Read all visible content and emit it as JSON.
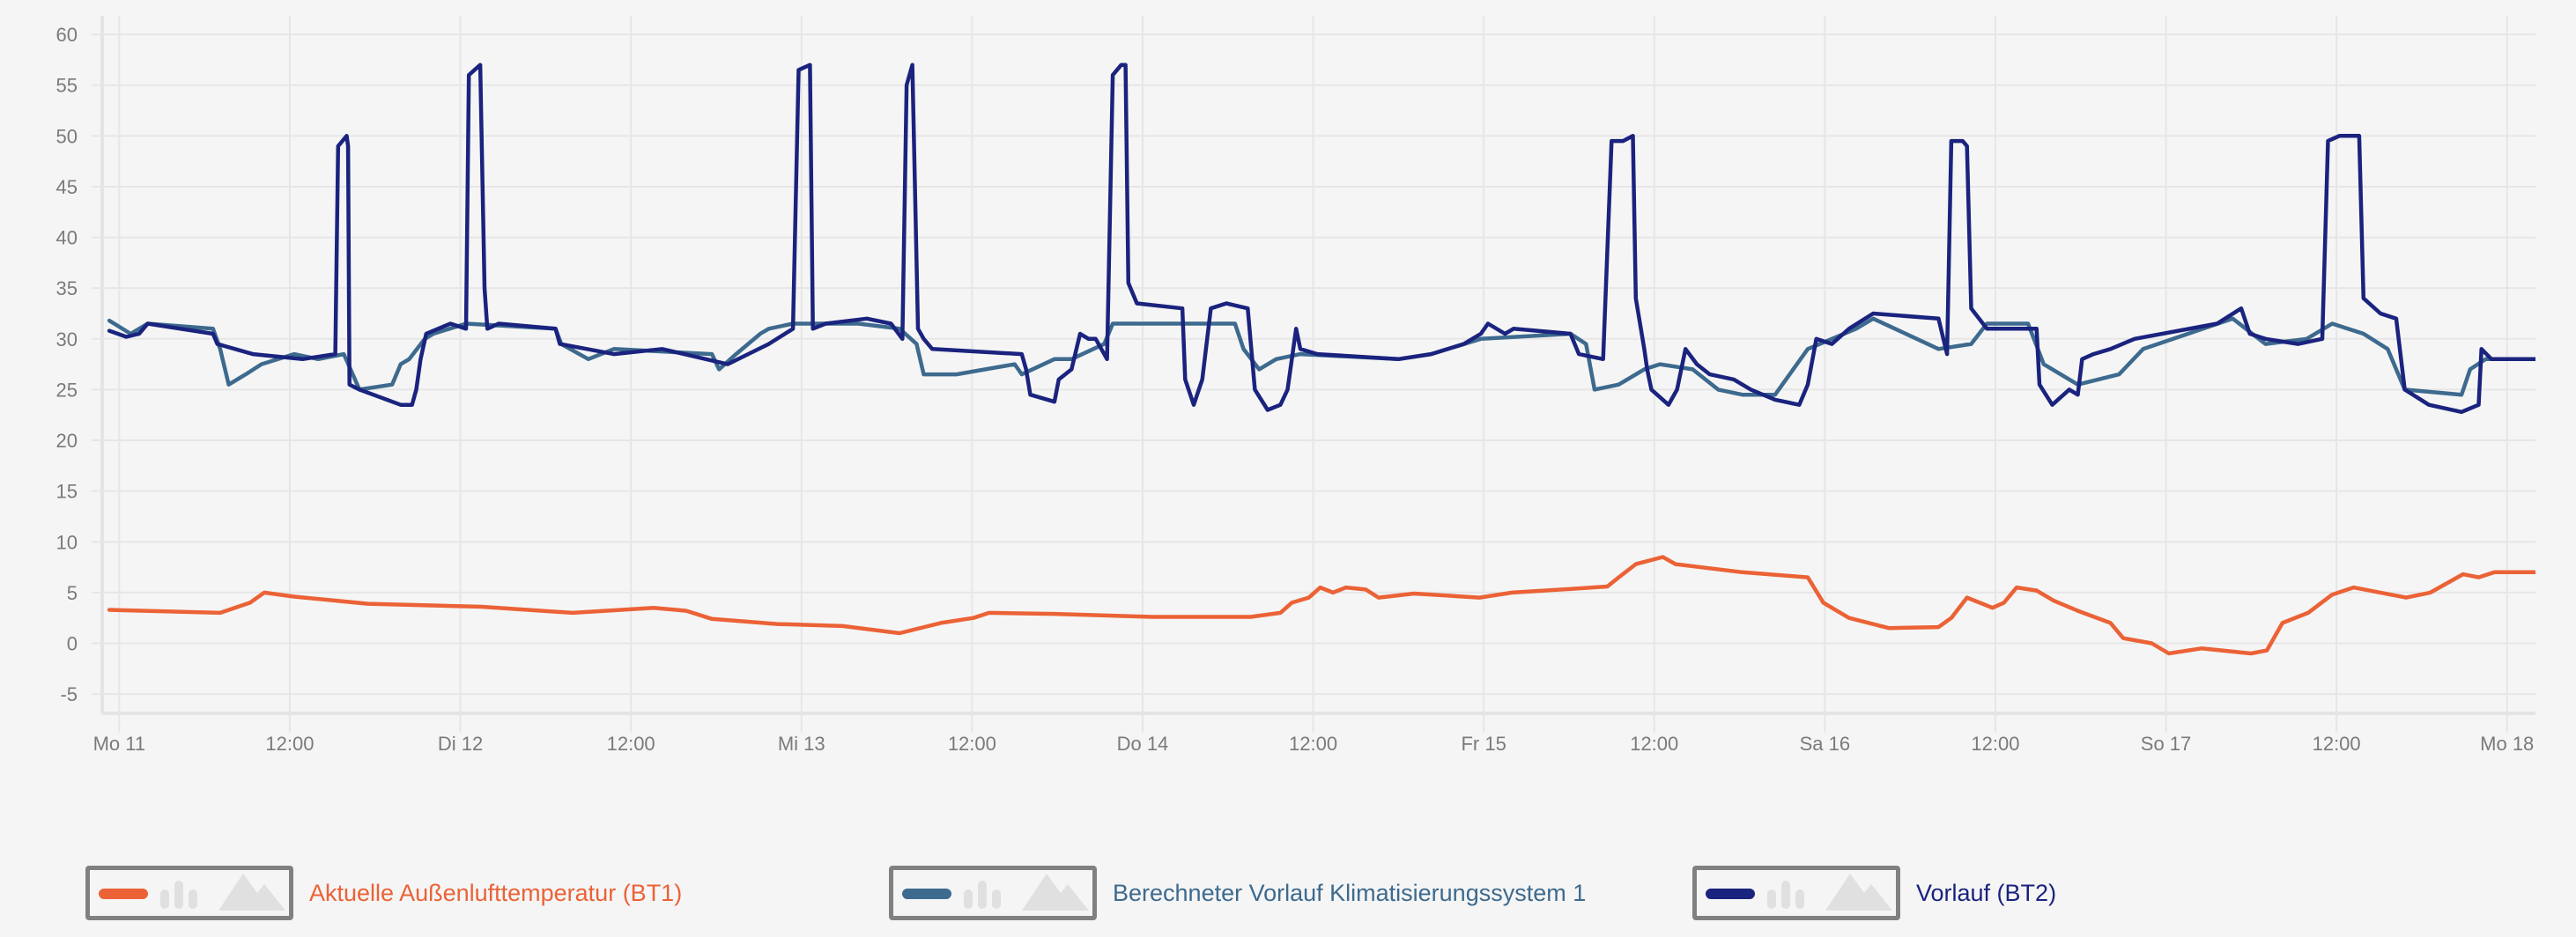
{
  "chart_data": {
    "type": "line",
    "xlabel": "",
    "ylabel": "",
    "x_unit": "hours since Mo 11 00:00",
    "xlim": [
      -1.2,
      170
    ],
    "ylim": [
      -6.9,
      62.7
    ],
    "grid": true,
    "legend_position": "bottom",
    "y_ticks": [
      -5,
      0,
      5,
      10,
      15,
      20,
      25,
      30,
      35,
      40,
      45,
      50,
      55,
      60
    ],
    "x_ticks": [
      {
        "x": 0,
        "label": "Mo 11"
      },
      {
        "x": 12,
        "label": "12:00"
      },
      {
        "x": 24,
        "label": "Di 12"
      },
      {
        "x": 36,
        "label": "12:00"
      },
      {
        "x": 48,
        "label": "Mi 13"
      },
      {
        "x": 60,
        "label": "12:00"
      },
      {
        "x": 72,
        "label": "Do 14"
      },
      {
        "x": 84,
        "label": "12:00"
      },
      {
        "x": 96,
        "label": "Fr 15"
      },
      {
        "x": 108,
        "label": "12:00"
      },
      {
        "x": 120,
        "label": "Sa 16"
      },
      {
        "x": 132,
        "label": "12:00"
      },
      {
        "x": 144,
        "label": "So 17"
      },
      {
        "x": 156,
        "label": "12:00"
      },
      {
        "x": 168,
        "label": "Mo 18"
      }
    ],
    "series": [
      {
        "name": "Aktuelle Außenlufttemperatur (BT1)",
        "color": "#eb6236",
        "points": [
          [
            -0.7,
            3.3
          ],
          [
            7.1,
            3.0
          ],
          [
            9.2,
            4.0
          ],
          [
            10.2,
            5.0
          ],
          [
            12.3,
            4.6
          ],
          [
            17.5,
            3.9
          ],
          [
            25.5,
            3.6
          ],
          [
            31.9,
            3.0
          ],
          [
            37.6,
            3.5
          ],
          [
            39.9,
            3.2
          ],
          [
            41.7,
            2.4
          ],
          [
            46.3,
            1.9
          ],
          [
            50.9,
            1.7
          ],
          [
            54.9,
            1.0
          ],
          [
            57.8,
            2.0
          ],
          [
            60.1,
            2.5
          ],
          [
            61.2,
            3.0
          ],
          [
            65.8,
            2.9
          ],
          [
            72.7,
            2.6
          ],
          [
            79.6,
            2.6
          ],
          [
            81.7,
            3.0
          ],
          [
            82.5,
            4.0
          ],
          [
            83.7,
            4.5
          ],
          [
            84.5,
            5.5
          ],
          [
            85.4,
            5.0
          ],
          [
            86.3,
            5.5
          ],
          [
            87.7,
            5.3
          ],
          [
            88.6,
            4.5
          ],
          [
            91.1,
            4.9
          ],
          [
            95.7,
            4.5
          ],
          [
            98,
            5.0
          ],
          [
            102.6,
            5.4
          ],
          [
            104.7,
            5.6
          ],
          [
            105.5,
            6.5
          ],
          [
            106.7,
            7.8
          ],
          [
            108.6,
            8.5
          ],
          [
            109.5,
            7.8
          ],
          [
            114.2,
            7.0
          ],
          [
            118.8,
            6.5
          ],
          [
            119.9,
            4.0
          ],
          [
            121.7,
            2.5
          ],
          [
            124.5,
            1.5
          ],
          [
            128,
            1.6
          ],
          [
            128.9,
            2.5
          ],
          [
            130,
            4.5
          ],
          [
            130.9,
            4.0
          ],
          [
            131.8,
            3.5
          ],
          [
            132.6,
            4.0
          ],
          [
            133.5,
            5.5
          ],
          [
            134.9,
            5.2
          ],
          [
            136.1,
            4.2
          ],
          [
            137.8,
            3.2
          ],
          [
            140.1,
            2.0
          ],
          [
            141,
            0.5
          ],
          [
            143,
            0
          ],
          [
            144.2,
            -1.0
          ],
          [
            146.5,
            -0.5
          ],
          [
            150,
            -1.0
          ],
          [
            151.1,
            -0.7
          ],
          [
            152.2,
            2.0
          ],
          [
            154,
            3.0
          ],
          [
            155.7,
            4.8
          ],
          [
            157.2,
            5.5
          ],
          [
            160.9,
            4.5
          ],
          [
            162.6,
            5.0
          ],
          [
            164.9,
            6.8
          ],
          [
            166,
            6.5
          ],
          [
            167.1,
            7.0
          ],
          [
            170,
            7.0
          ]
        ]
      },
      {
        "name": "Berechneter Vorlauf Klimatisierungssystem 1",
        "color": "#3d6a8e",
        "points": [
          [
            -0.7,
            31.8
          ],
          [
            0.8,
            30.5
          ],
          [
            2.0,
            31.5
          ],
          [
            6.6,
            31
          ],
          [
            7.1,
            29
          ],
          [
            7.7,
            25.5
          ],
          [
            8.9,
            26.5
          ],
          [
            10.0,
            27.5
          ],
          [
            12.3,
            28.5
          ],
          [
            14.0,
            28
          ],
          [
            15.8,
            28.5
          ],
          [
            16.9,
            25
          ],
          [
            19.2,
            25.5
          ],
          [
            19.8,
            27.5
          ],
          [
            20.4,
            28
          ],
          [
            21.5,
            30
          ],
          [
            22.1,
            30.5
          ],
          [
            24.4,
            31.5
          ],
          [
            30.7,
            31
          ],
          [
            31.1,
            29.5
          ],
          [
            33.0,
            28
          ],
          [
            34.8,
            29
          ],
          [
            41.7,
            28.5
          ],
          [
            42.2,
            27
          ],
          [
            43.4,
            28.5
          ],
          [
            45.1,
            30.5
          ],
          [
            45.7,
            31
          ],
          [
            47.4,
            31.5
          ],
          [
            52.0,
            31.5
          ],
          [
            54.9,
            31
          ],
          [
            56.1,
            29.5
          ],
          [
            56.6,
            26.5
          ],
          [
            58.9,
            26.5
          ],
          [
            63.0,
            27.5
          ],
          [
            63.5,
            26.5
          ],
          [
            65.8,
            28
          ],
          [
            67.0,
            28
          ],
          [
            69.3,
            29.5
          ],
          [
            69.9,
            31.5
          ],
          [
            78.5,
            31.5
          ],
          [
            79.1,
            29
          ],
          [
            80.2,
            27
          ],
          [
            81.4,
            28
          ],
          [
            83.1,
            28.5
          ],
          [
            90.0,
            28
          ],
          [
            92.3,
            28.5
          ],
          [
            95.8,
            30
          ],
          [
            102.1,
            30.5
          ],
          [
            103.2,
            29.5
          ],
          [
            103.8,
            25
          ],
          [
            105.5,
            25.5
          ],
          [
            107.3,
            27
          ],
          [
            108.4,
            27.5
          ],
          [
            110.7,
            27
          ],
          [
            112.5,
            25
          ],
          [
            114.2,
            24.5
          ],
          [
            116.5,
            24.5
          ],
          [
            118.8,
            29
          ],
          [
            122.2,
            31
          ],
          [
            123.4,
            32
          ],
          [
            128.0,
            29
          ],
          [
            130.3,
            29.5
          ],
          [
            131.4,
            31.5
          ],
          [
            134.3,
            31.5
          ],
          [
            135.4,
            27.5
          ],
          [
            137.8,
            25.5
          ],
          [
            140.7,
            26.5
          ],
          [
            142.4,
            29
          ],
          [
            148.7,
            32
          ],
          [
            151.0,
            29.5
          ],
          [
            153.9,
            30
          ],
          [
            155.7,
            31.5
          ],
          [
            157.9,
            30.5
          ],
          [
            159.6,
            29
          ],
          [
            160.8,
            25
          ],
          [
            164.8,
            24.5
          ],
          [
            165.4,
            27
          ],
          [
            166.5,
            28
          ],
          [
            170,
            28
          ]
        ]
      },
      {
        "name": "Vorlauf (BT2)",
        "color": "#1a237e",
        "points": [
          [
            -0.7,
            30.8
          ],
          [
            0.5,
            30.2
          ],
          [
            1.4,
            30.5
          ],
          [
            2.0,
            31.5
          ],
          [
            6.6,
            30.5
          ],
          [
            6.9,
            29.5
          ],
          [
            9.4,
            28.5
          ],
          [
            12.9,
            28
          ],
          [
            15.2,
            28.5
          ],
          [
            15.4,
            49
          ],
          [
            16.0,
            50
          ],
          [
            16.1,
            49
          ],
          [
            16.2,
            25.5
          ],
          [
            16.9,
            25
          ],
          [
            19.8,
            23.5
          ],
          [
            20.6,
            23.5
          ],
          [
            20.9,
            25
          ],
          [
            21.2,
            28
          ],
          [
            21.6,
            30.5
          ],
          [
            23.3,
            31.5
          ],
          [
            24.4,
            31
          ],
          [
            24.6,
            56
          ],
          [
            25.4,
            57
          ],
          [
            25.7,
            35
          ],
          [
            25.9,
            31
          ],
          [
            26.7,
            31.5
          ],
          [
            30.7,
            31
          ],
          [
            31.0,
            29.5
          ],
          [
            34.8,
            28.5
          ],
          [
            38.2,
            29
          ],
          [
            42.8,
            27.5
          ],
          [
            45.7,
            29.5
          ],
          [
            47.4,
            31
          ],
          [
            47.8,
            56.5
          ],
          [
            48.6,
            57
          ],
          [
            48.8,
            31
          ],
          [
            49.7,
            31.5
          ],
          [
            52.6,
            32
          ],
          [
            54.3,
            31.5
          ],
          [
            55.1,
            30
          ],
          [
            55.4,
            55
          ],
          [
            55.8,
            57
          ],
          [
            56.2,
            31
          ],
          [
            56.6,
            30
          ],
          [
            57.2,
            29
          ],
          [
            63.5,
            28.5
          ],
          [
            63.8,
            27
          ],
          [
            64.1,
            24.5
          ],
          [
            65.8,
            23.8
          ],
          [
            66.1,
            26
          ],
          [
            67.0,
            27
          ],
          [
            67.6,
            30.5
          ],
          [
            68.2,
            30
          ],
          [
            68.7,
            30
          ],
          [
            69.5,
            28
          ],
          [
            69.9,
            56
          ],
          [
            70.5,
            57
          ],
          [
            70.8,
            57
          ],
          [
            71.0,
            35.5
          ],
          [
            71.6,
            33.5
          ],
          [
            74.8,
            33
          ],
          [
            75.0,
            26
          ],
          [
            75.6,
            23.5
          ],
          [
            76.2,
            26
          ],
          [
            76.8,
            33
          ],
          [
            77.9,
            33.5
          ],
          [
            79.4,
            33
          ],
          [
            79.9,
            25
          ],
          [
            80.8,
            23
          ],
          [
            81.7,
            23.5
          ],
          [
            82.2,
            25
          ],
          [
            82.8,
            31
          ],
          [
            83.1,
            29
          ],
          [
            84.3,
            28.5
          ],
          [
            90.0,
            28
          ],
          [
            92.3,
            28.5
          ],
          [
            94.6,
            29.5
          ],
          [
            95.8,
            30.5
          ],
          [
            96.3,
            31.5
          ],
          [
            97.5,
            30.5
          ],
          [
            98.1,
            31
          ],
          [
            102.1,
            30.5
          ],
          [
            102.7,
            28.5
          ],
          [
            104.4,
            28
          ],
          [
            105.0,
            49.5
          ],
          [
            105.8,
            49.5
          ],
          [
            106.5,
            50
          ],
          [
            106.7,
            34
          ],
          [
            107.3,
            29
          ],
          [
            107.5,
            27
          ],
          [
            107.8,
            25
          ],
          [
            109.0,
            23.5
          ],
          [
            109.6,
            25
          ],
          [
            110.2,
            29
          ],
          [
            111.0,
            27.5
          ],
          [
            111.9,
            26.5
          ],
          [
            113.6,
            26
          ],
          [
            114.8,
            25
          ],
          [
            116.5,
            24
          ],
          [
            118.2,
            23.5
          ],
          [
            118.8,
            25.5
          ],
          [
            119.4,
            30
          ],
          [
            120.5,
            29.5
          ],
          [
            121.7,
            31
          ],
          [
            123.4,
            32.5
          ],
          [
            128.0,
            32
          ],
          [
            128.6,
            28.5
          ],
          [
            128.9,
            49.5
          ],
          [
            129.7,
            49.5
          ],
          [
            130.0,
            49
          ],
          [
            130.3,
            33
          ],
          [
            131.4,
            31
          ],
          [
            134.9,
            31
          ],
          [
            135.1,
            25.5
          ],
          [
            136.0,
            23.5
          ],
          [
            137.2,
            25
          ],
          [
            137.8,
            24.5
          ],
          [
            138.1,
            28
          ],
          [
            138.9,
            28.5
          ],
          [
            140.1,
            29
          ],
          [
            141.8,
            30
          ],
          [
            147.6,
            31.5
          ],
          [
            149.3,
            33
          ],
          [
            149.9,
            30.5
          ],
          [
            151.0,
            30
          ],
          [
            153.3,
            29.5
          ],
          [
            155.0,
            30
          ],
          [
            155.4,
            49.5
          ],
          [
            156.2,
            50
          ],
          [
            157.6,
            50
          ],
          [
            157.9,
            34
          ],
          [
            159.1,
            32.5
          ],
          [
            160.2,
            32
          ],
          [
            160.8,
            25
          ],
          [
            162.5,
            23.5
          ],
          [
            164.8,
            22.8
          ],
          [
            166.0,
            23.5
          ],
          [
            166.2,
            29
          ],
          [
            166.9,
            28
          ],
          [
            170,
            28
          ]
        ]
      }
    ]
  },
  "legend": [
    {
      "label": "Aktuelle Außenlufttemperatur (BT1)",
      "color": "#eb6236"
    },
    {
      "label": "Berechneter Vorlauf Klimatisierungssystem 1",
      "color": "#3d6a8e"
    },
    {
      "label": "Vorlauf (BT2)",
      "color": "#1a237e"
    }
  ]
}
